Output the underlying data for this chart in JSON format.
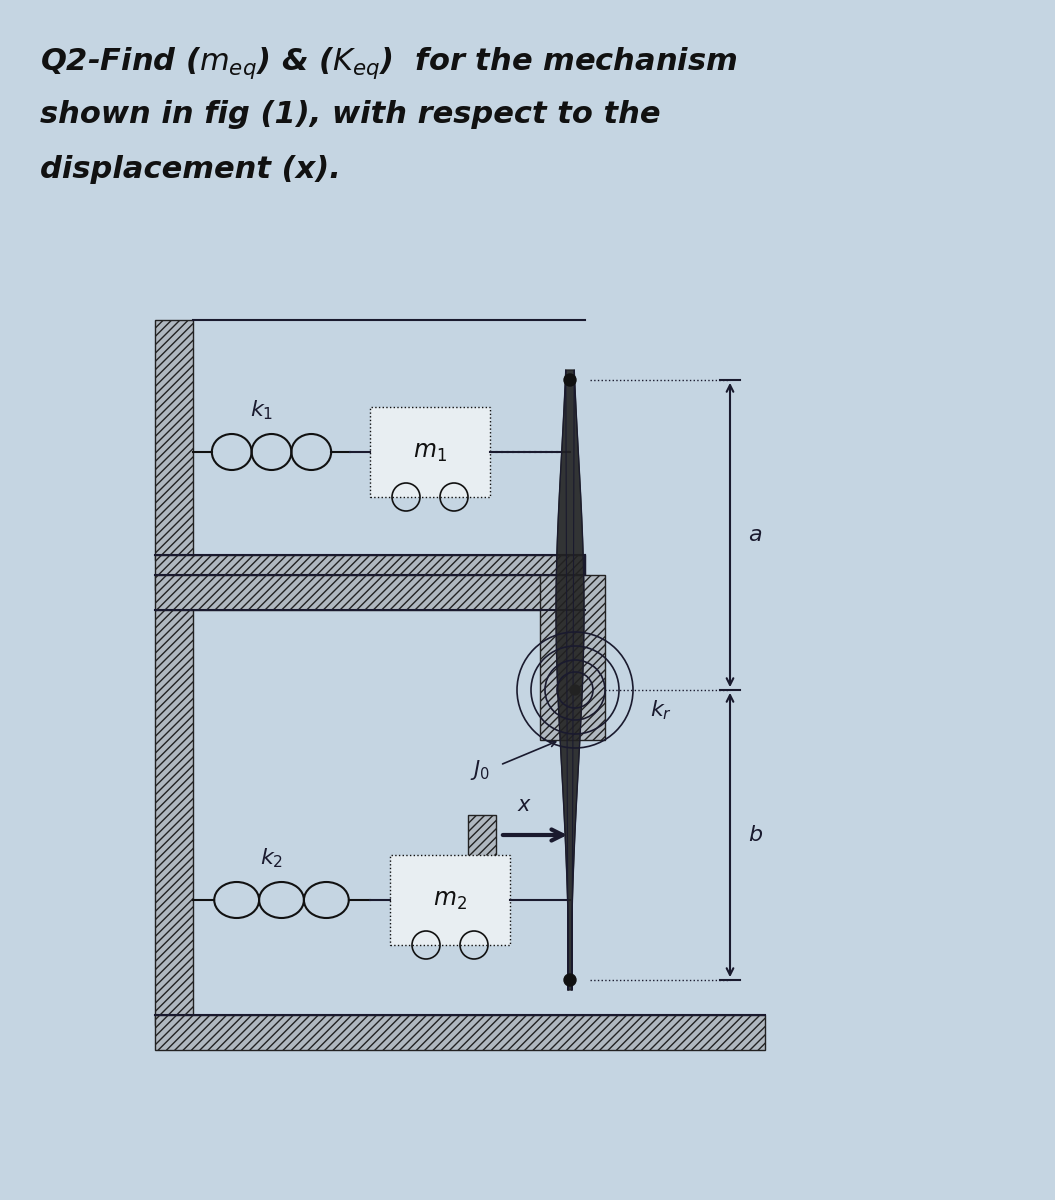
{
  "bg_color": "#c5d5e2",
  "line_color": "#1a1a2e",
  "hatch_facecolor": "#b0b8c0",
  "mass_facecolor": "#e8eef2",
  "title_line1": "Q2-Find ($m_{eq}$) & ($K_{eq}$)  for the mechanism",
  "title_line2": "shown in fig (1), with respect to the",
  "title_line3": "displacement (x).",
  "label_k1": "$k_1$",
  "label_k2": "$k_2$",
  "label_m1": "$m_1$",
  "label_m2": "$m_2$",
  "label_Jo": "$J_0$",
  "label_kr": "$k_r$",
  "label_a": "$a$",
  "label_b": "$b$",
  "label_x": "$x$"
}
